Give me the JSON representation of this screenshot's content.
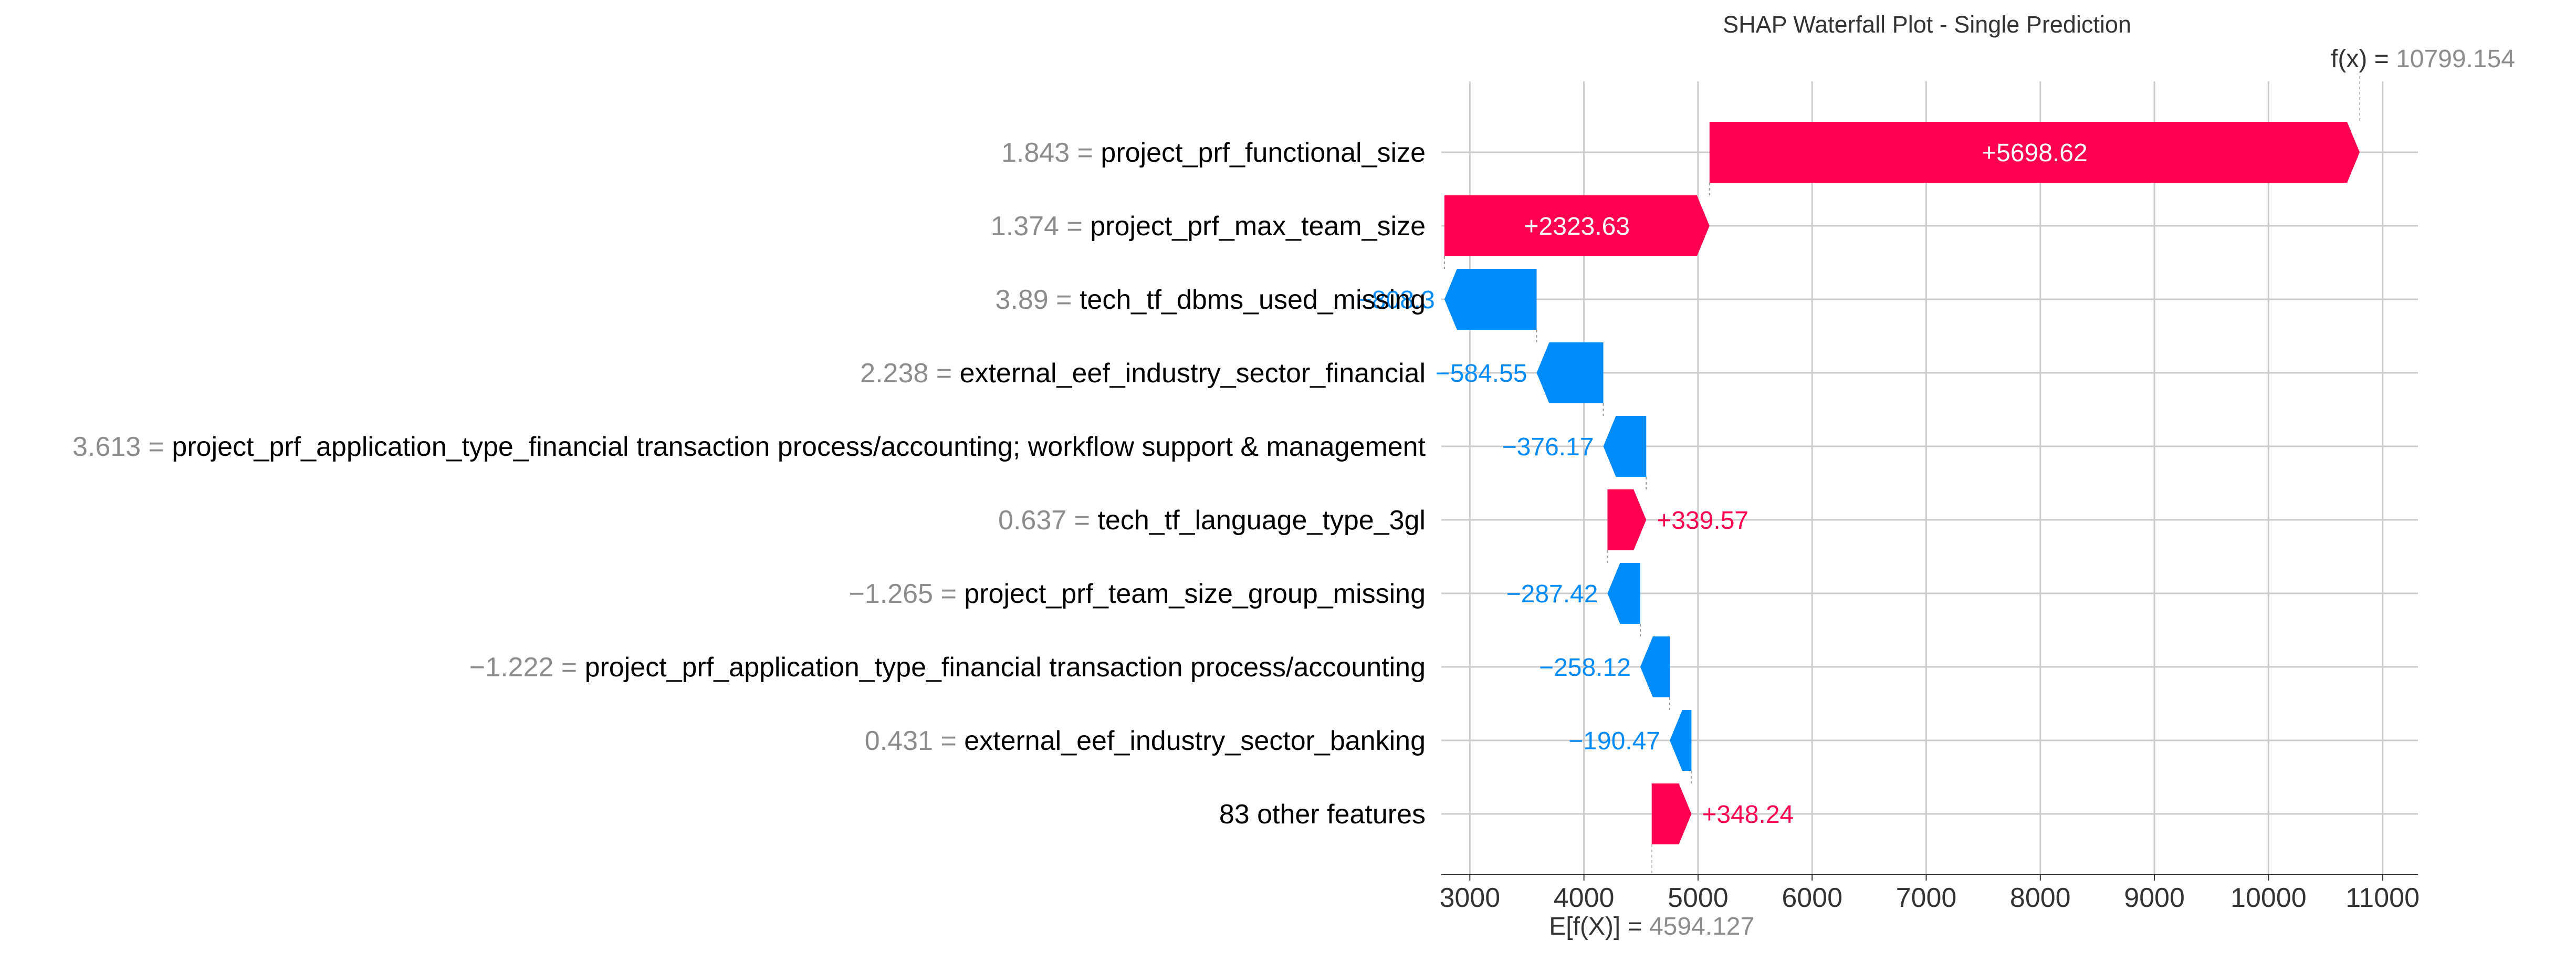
{
  "chart_data": {
    "type": "bar",
    "subtype": "shap-waterfall",
    "title": "SHAP Waterfall Plot - Single Prediction",
    "base_value_label": "E[f(X)] = ",
    "base_value": 4594.127,
    "output_label": "f(x) = ",
    "output_value": 10799.154,
    "features": [
      {
        "name": "project_prf_functional_size",
        "value": "1.843",
        "contribution": 5698.62,
        "label": "+5698.62"
      },
      {
        "name": "project_prf_max_team_size",
        "value": "1.374",
        "contribution": 2323.63,
        "label": "+2323.63"
      },
      {
        "name": "tech_tf_dbms_used_missing",
        "value": "3.89",
        "contribution": -808.3,
        "label": "−808.3"
      },
      {
        "name": "external_eef_industry_sector_financial",
        "value": "2.238",
        "contribution": -584.55,
        "label": "−584.55"
      },
      {
        "name": "project_prf_application_type_financial transaction process/accounting; workflow support & management",
        "value": "3.613",
        "contribution": -376.17,
        "label": "−376.17"
      },
      {
        "name": "tech_tf_language_type_3gl",
        "value": "0.637",
        "contribution": 339.57,
        "label": "+339.57"
      },
      {
        "name": "project_prf_team_size_group_missing",
        "value": "−1.265",
        "contribution": -287.42,
        "label": "−287.42"
      },
      {
        "name": "project_prf_application_type_financial transaction process/accounting",
        "value": "−1.222",
        "contribution": -258.12,
        "label": "−258.12"
      },
      {
        "name": "external_eef_industry_sector_banking",
        "value": "0.431",
        "contribution": -190.47,
        "label": "−190.47"
      },
      {
        "name": "83 other features",
        "value": "",
        "contribution": 348.24,
        "label": "+348.24"
      }
    ],
    "x_ticks": [
      3000,
      4000,
      5000,
      6000,
      7000,
      8000,
      9000,
      10000,
      11000
    ],
    "x_tick_labels": [
      "3000",
      "4000",
      "5000",
      "6000",
      "7000",
      "8000",
      "9000",
      "10000",
      "11000"
    ],
    "xlim": [
      2750,
      11310
    ],
    "grid": true,
    "colors": {
      "positive": "#ff0051",
      "negative": "#008bfb",
      "grid": "#cccccc",
      "value_text": "#8c8c8c"
    }
  }
}
